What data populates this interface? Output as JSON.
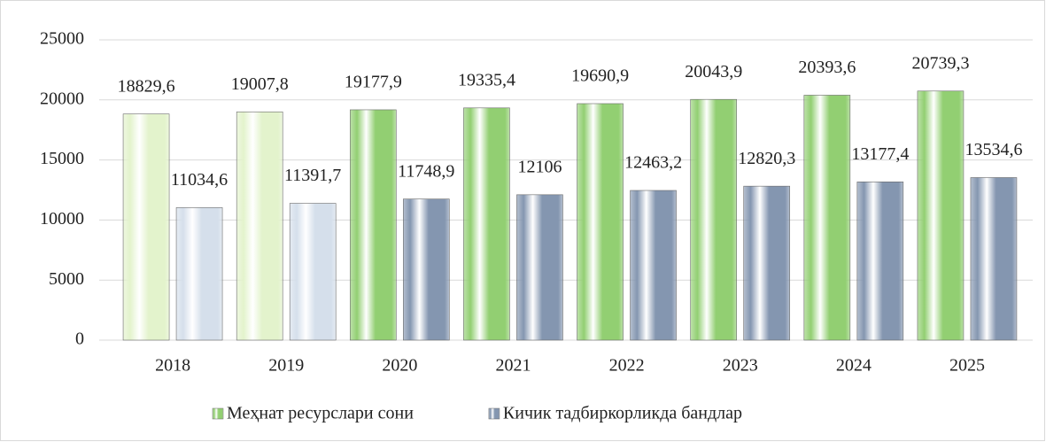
{
  "chart_data": {
    "type": "bar",
    "categories": [
      "2018",
      "2019",
      "2020",
      "2021",
      "2022",
      "2023",
      "2024",
      "2025"
    ],
    "series": [
      {
        "name": "Меҳнат ресурслари сони",
        "color": "#92cf72",
        "colors": [
          "#e3f3cc",
          "#e3f3cc",
          "#92cf72",
          "#92cf72",
          "#92cf72",
          "#92cf72",
          "#92cf72",
          "#92cf72"
        ],
        "values": [
          18829.6,
          19007.8,
          19177.9,
          19335.4,
          19690.9,
          20043.9,
          20393.6,
          20739.3
        ],
        "value_labels": [
          "18829,6",
          "19007,8",
          "19177,9",
          "19335,4",
          "19690,9",
          "20043,9",
          "20393,6",
          "20739,3"
        ]
      },
      {
        "name": "Кичик тадбиркорликда бандлар",
        "color": "#8496b0",
        "colors": [
          "#d5dfeb",
          "#d5dfeb",
          "#8496b0",
          "#8496b0",
          "#8496b0",
          "#8496b0",
          "#8496b0",
          "#8496b0"
        ],
        "values": [
          11034.6,
          11391.7,
          11748.9,
          12106,
          12463.2,
          12820.3,
          13177.4,
          13534.6
        ],
        "value_labels": [
          "11034,6",
          "11391,7",
          "11748,9",
          "12106",
          "12463,2",
          "12820,3",
          "13177,4",
          "13534,6"
        ]
      }
    ],
    "ylim": [
      0,
      25000
    ],
    "yticks": [
      0,
      5000,
      10000,
      15000,
      20000,
      25000
    ],
    "grid": true,
    "legend": "bottom"
  }
}
